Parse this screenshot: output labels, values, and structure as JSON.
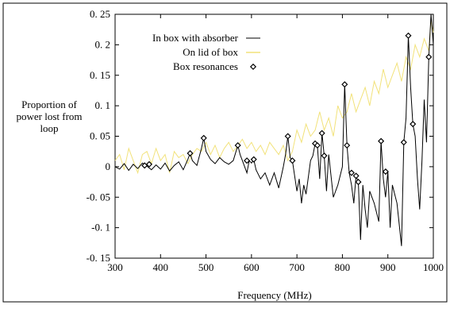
{
  "chart_data": {
    "type": "line",
    "ylabel_lines": [
      "Proportion of",
      "power lost from",
      "loop"
    ],
    "xlabel": "Frequency (MHz)",
    "xlim": [
      300,
      1000
    ],
    "ylim": [
      -0.15,
      0.25
    ],
    "x_ticks": [
      300,
      400,
      500,
      600,
      700,
      800,
      900,
      1000
    ],
    "x_tick_labels": [
      "300",
      "400",
      "500",
      "600",
      "700",
      "800",
      "900",
      "1000"
    ],
    "y_ticks": [
      -0.15,
      -0.1,
      -0.05,
      0,
      0.05,
      0.1,
      0.15,
      0.2,
      0.25
    ],
    "y_tick_labels": [
      "-0. 15",
      "-0. 1",
      "-0. 05",
      "0",
      "0. 05",
      "0. 1",
      "0. 15",
      "0. 2",
      "0. 25"
    ],
    "legend_position": "top-left",
    "grid": false,
    "colors": {
      "absorber": "#000000",
      "lid": "#f2e27a",
      "resonance": "#000000"
    },
    "series": [
      {
        "name": "In box with absorber",
        "style": "line",
        "points": [
          [
            300,
            0
          ],
          [
            310,
            -0.004
          ],
          [
            320,
            0.005
          ],
          [
            330,
            -0.006
          ],
          [
            340,
            0.004
          ],
          [
            350,
            -0.003
          ],
          [
            360,
            0.006
          ],
          [
            370,
            0.001
          ],
          [
            380,
            -0.005
          ],
          [
            390,
            0.003
          ],
          [
            400,
            -0.004
          ],
          [
            410,
            0.006
          ],
          [
            420,
            -0.007
          ],
          [
            430,
            0.002
          ],
          [
            440,
            0.008
          ],
          [
            450,
            -0.005
          ],
          [
            460,
            0.012
          ],
          [
            465,
            0.022
          ],
          [
            470,
            0.01
          ],
          [
            480,
            0.002
          ],
          [
            490,
            0.03
          ],
          [
            495,
            0.047
          ],
          [
            500,
            0.025
          ],
          [
            510,
            0.012
          ],
          [
            520,
            0.005
          ],
          [
            530,
            0.015
          ],
          [
            540,
            0.008
          ],
          [
            550,
            0.004
          ],
          [
            560,
            0.01
          ],
          [
            570,
            0.035
          ],
          [
            575,
            0.02
          ],
          [
            580,
            0.01
          ],
          [
            590,
            -0.01
          ],
          [
            595,
            0.01
          ],
          [
            600,
            0.006
          ],
          [
            605,
            0.012
          ],
          [
            610,
            -0.005
          ],
          [
            620,
            -0.02
          ],
          [
            630,
            -0.01
          ],
          [
            640,
            -0.03
          ],
          [
            650,
            -0.01
          ],
          [
            660,
            -0.035
          ],
          [
            670,
            0.0
          ],
          [
            675,
            0.02
          ],
          [
            680,
            0.05
          ],
          [
            685,
            0.015
          ],
          [
            690,
            0.01
          ],
          [
            700,
            -0.04
          ],
          [
            705,
            -0.02
          ],
          [
            710,
            -0.06
          ],
          [
            715,
            -0.03
          ],
          [
            720,
            -0.045
          ],
          [
            730,
            0.01
          ],
          [
            735,
            0.018
          ],
          [
            740,
            0.038
          ],
          [
            745,
            0.035
          ],
          [
            750,
            -0.02
          ],
          [
            755,
            0.055
          ],
          [
            760,
            0.018
          ],
          [
            765,
            -0.04
          ],
          [
            770,
            0.02
          ],
          [
            780,
            -0.05
          ],
          [
            790,
            -0.03
          ],
          [
            800,
            0.0
          ],
          [
            805,
            0.135
          ],
          [
            810,
            0.035
          ],
          [
            815,
            -0.01
          ],
          [
            820,
            -0.03
          ],
          [
            825,
            -0.06
          ],
          [
            830,
            -0.015
          ],
          [
            835,
            -0.025
          ],
          [
            840,
            -0.12
          ],
          [
            845,
            -0.03
          ],
          [
            850,
            -0.07
          ],
          [
            855,
            -0.1
          ],
          [
            860,
            -0.04
          ],
          [
            870,
            -0.06
          ],
          [
            880,
            -0.09
          ],
          [
            885,
            0.042
          ],
          [
            890,
            -0.02
          ],
          [
            895,
            -0.05
          ],
          [
            900,
            -0.008
          ],
          [
            905,
            -0.1
          ],
          [
            910,
            -0.03
          ],
          [
            920,
            -0.06
          ],
          [
            930,
            -0.13
          ],
          [
            935,
            0.04
          ],
          [
            940,
            0.08
          ],
          [
            945,
            0.215
          ],
          [
            950,
            0.13
          ],
          [
            955,
            0.07
          ],
          [
            960,
            0.05
          ],
          [
            965,
            -0.02
          ],
          [
            970,
            -0.07
          ],
          [
            975,
            0.01
          ],
          [
            980,
            0.11
          ],
          [
            985,
            0.04
          ],
          [
            990,
            0.18
          ],
          [
            995,
            0.25
          ],
          [
            1000,
            0.2
          ]
        ]
      },
      {
        "name": "On lid of box",
        "style": "line",
        "points": [
          [
            300,
            0.01
          ],
          [
            310,
            0.02
          ],
          [
            320,
            -0.005
          ],
          [
            330,
            0.03
          ],
          [
            340,
            0.01
          ],
          [
            350,
            -0.01
          ],
          [
            360,
            0.02
          ],
          [
            370,
            0.025
          ],
          [
            380,
            0.005
          ],
          [
            390,
            0.03
          ],
          [
            400,
            0.01
          ],
          [
            410,
            0.02
          ],
          [
            420,
            -0.01
          ],
          [
            430,
            0.025
          ],
          [
            440,
            0.015
          ],
          [
            450,
            0.02
          ],
          [
            460,
            0.005
          ],
          [
            470,
            0.02
          ],
          [
            480,
            0.03
          ],
          [
            490,
            0.025
          ],
          [
            500,
            0.04
          ],
          [
            510,
            0.02
          ],
          [
            520,
            0.035
          ],
          [
            530,
            0.015
          ],
          [
            540,
            0.03
          ],
          [
            550,
            0.04
          ],
          [
            560,
            0.025
          ],
          [
            570,
            0.035
          ],
          [
            580,
            0.045
          ],
          [
            590,
            0.03
          ],
          [
            600,
            0.04
          ],
          [
            610,
            0.025
          ],
          [
            620,
            0.035
          ],
          [
            630,
            0.02
          ],
          [
            640,
            0.04
          ],
          [
            650,
            0.03
          ],
          [
            660,
            0.02
          ],
          [
            670,
            0.035
          ],
          [
            680,
            0.01
          ],
          [
            690,
            0.025
          ],
          [
            700,
            0.06
          ],
          [
            710,
            0.04
          ],
          [
            720,
            0.07
          ],
          [
            730,
            0.05
          ],
          [
            740,
            0.06
          ],
          [
            750,
            0.09
          ],
          [
            760,
            0.06
          ],
          [
            770,
            0.08
          ],
          [
            780,
            0.05
          ],
          [
            790,
            0.1
          ],
          [
            800,
            0.08
          ],
          [
            810,
            0.09
          ],
          [
            820,
            0.12
          ],
          [
            830,
            0.09
          ],
          [
            840,
            0.11
          ],
          [
            850,
            0.13
          ],
          [
            860,
            0.1
          ],
          [
            870,
            0.14
          ],
          [
            880,
            0.12
          ],
          [
            890,
            0.16
          ],
          [
            900,
            0.13
          ],
          [
            910,
            0.15
          ],
          [
            920,
            0.17
          ],
          [
            930,
            0.14
          ],
          [
            940,
            0.18
          ],
          [
            950,
            0.16
          ],
          [
            960,
            0.2
          ],
          [
            970,
            0.18
          ],
          [
            980,
            0.21
          ],
          [
            990,
            0.19
          ],
          [
            995,
            0.24
          ],
          [
            1000,
            0.22
          ]
        ]
      },
      {
        "name": "Box resonances",
        "style": "markers",
        "points": [
          [
            365,
            0.002
          ],
          [
            375,
            0.004
          ],
          [
            465,
            0.022
          ],
          [
            495,
            0.047
          ],
          [
            570,
            0.035
          ],
          [
            590,
            0.01
          ],
          [
            605,
            0.012
          ],
          [
            680,
            0.05
          ],
          [
            690,
            0.01
          ],
          [
            740,
            0.038
          ],
          [
            745,
            0.035
          ],
          [
            755,
            0.055
          ],
          [
            760,
            0.018
          ],
          [
            805,
            0.135
          ],
          [
            810,
            0.035
          ],
          [
            820,
            -0.01
          ],
          [
            830,
            -0.015
          ],
          [
            835,
            -0.025
          ],
          [
            885,
            0.042
          ],
          [
            895,
            -0.008
          ],
          [
            935,
            0.04
          ],
          [
            945,
            0.215
          ],
          [
            955,
            0.07
          ],
          [
            990,
            0.18
          ]
        ]
      }
    ]
  }
}
